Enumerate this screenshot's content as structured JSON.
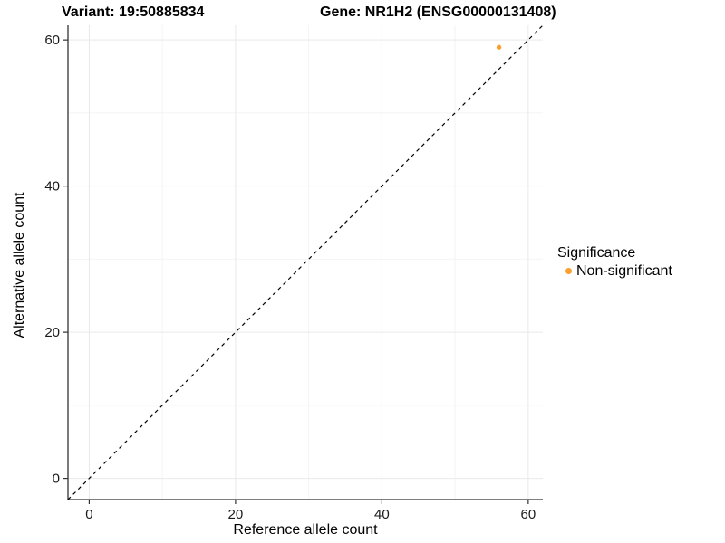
{
  "header": {
    "variant_title": "Variant: 19:50885834",
    "gene_title": "Gene: NR1H2 (ENSG00000131408)"
  },
  "chart_data": {
    "type": "scatter",
    "title": "Variant: 19:50885834 / Gene: NR1H2 (ENSG00000131408)",
    "xlabel": "Reference allele count",
    "ylabel": "Alternative allele count",
    "xlim": [
      -2.9,
      62
    ],
    "ylim": [
      -2.9,
      62
    ],
    "x_major_ticks": [
      0,
      20,
      40,
      60
    ],
    "y_major_ticks": [
      0,
      20,
      40,
      60
    ],
    "x_minor_ticks": [
      10,
      30,
      50
    ],
    "y_minor_ticks": [
      10,
      30,
      50
    ],
    "x_tick_labels": [
      "0",
      "20",
      "40",
      "60"
    ],
    "y_tick_labels": [
      "0",
      "20",
      "40",
      "60"
    ],
    "grid": true,
    "series": [
      {
        "name": "Non-significant",
        "color": "#F9A02E",
        "points": [
          {
            "x": 56,
            "y": 59
          }
        ]
      }
    ],
    "reference_line": {
      "type": "identity",
      "style": "dashed",
      "color": "#000000"
    },
    "legend": {
      "position": "right",
      "title": "Significance",
      "items": [
        {
          "label": "Non-significant",
          "color": "#F9A02E"
        }
      ]
    }
  },
  "colors": {
    "background": "#FFFFFF",
    "grid_major": "#E9E9E9",
    "grid_minor": "#F4F4F4",
    "axis_line": "#333333",
    "tick_mark": "#333333",
    "tick_text": "#1A1A1A",
    "title_text": "#000000"
  }
}
